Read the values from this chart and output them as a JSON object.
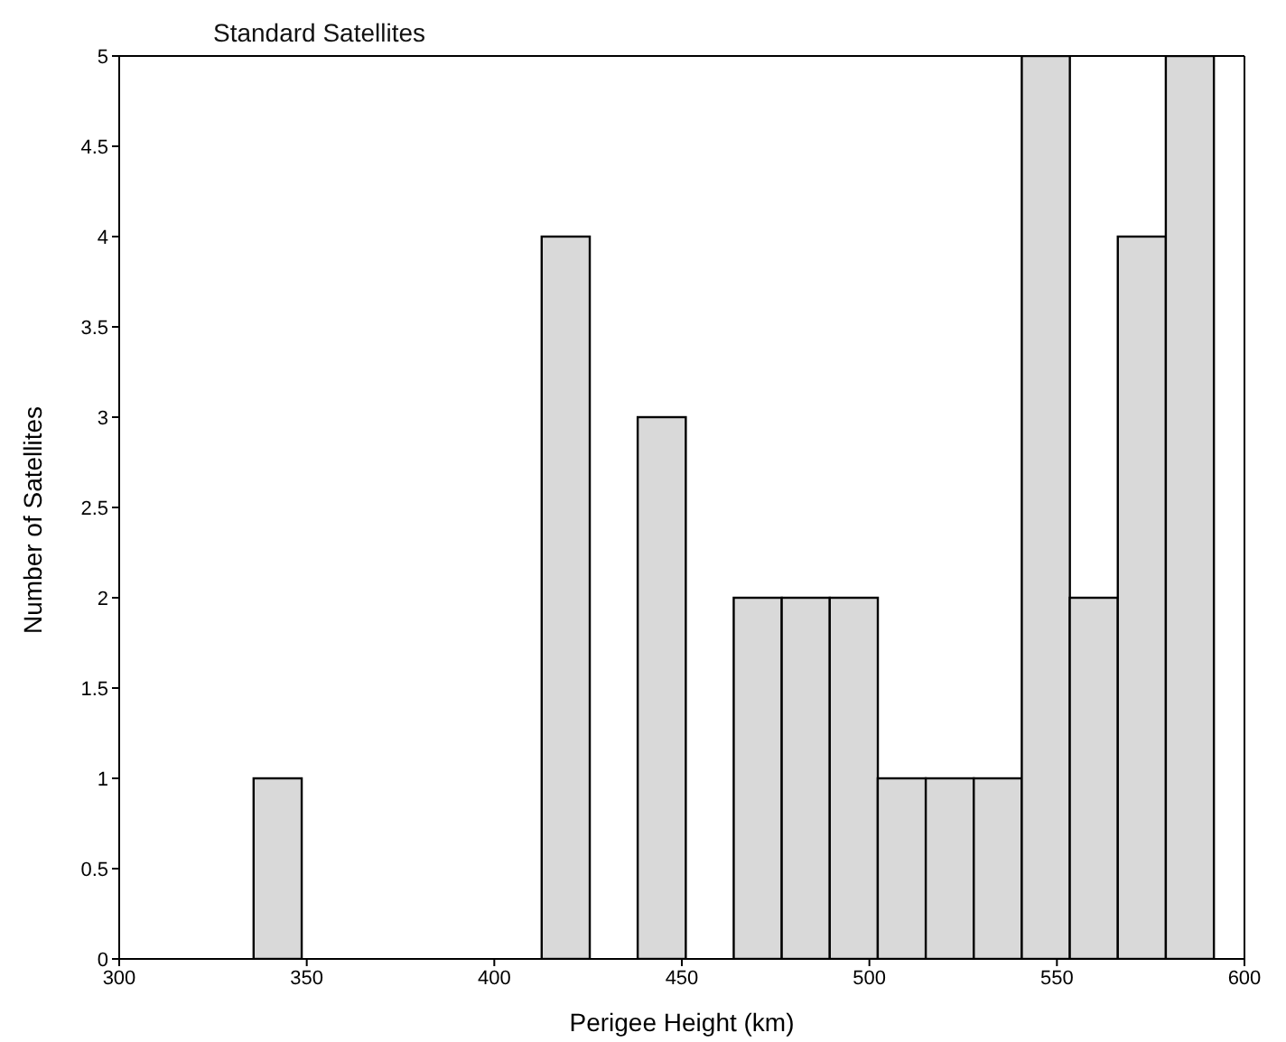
{
  "chart_data": {
    "type": "histogram",
    "title": "Standard Satellites",
    "xlabel": "Perigee Height (km)",
    "ylabel": "Number of Satellites",
    "bins": [
      336,
      348.8,
      361.6,
      374.4,
      387.2,
      400,
      412.8,
      425.6,
      438.4,
      451.2,
      464,
      476.8,
      489.6,
      502.4,
      515.2,
      528,
      540.8,
      553.6,
      566.4,
      579.2,
      592
    ],
    "values": [
      1,
      0,
      0,
      0,
      0,
      0,
      4,
      0,
      3,
      0,
      2,
      2,
      2,
      1,
      1,
      1,
      5,
      2,
      4,
      5
    ],
    "color": "#d9d9d9",
    "xlim": [
      300,
      600
    ],
    "xticks": [
      300,
      350,
      400,
      450,
      500,
      550,
      600
    ],
    "ylim": [
      0,
      5
    ],
    "yticks": [
      0,
      0.5,
      1,
      1.5,
      2,
      2.5,
      3,
      3.5,
      4,
      4.5,
      5
    ],
    "grid": false,
    "legend": false
  }
}
